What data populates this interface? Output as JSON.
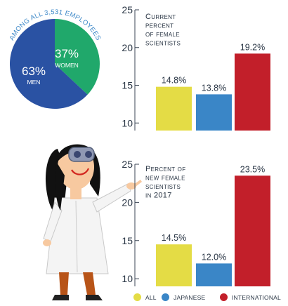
{
  "pie": {
    "caption": "Among all 3,531 employees",
    "slices": [
      {
        "label": "Women",
        "pct_text": "37%",
        "value": 37,
        "color": "#20a86b"
      },
      {
        "label": "Men",
        "pct_text": "63%",
        "value": 63,
        "color": "#2a52a3"
      }
    ]
  },
  "chart_data": [
    {
      "type": "bar",
      "title": "Current percent of female scientists",
      "title_lines": [
        "Current",
        "percent",
        "of female",
        "scientists"
      ],
      "categories": [
        "All",
        "Japanese",
        "International"
      ],
      "values": [
        14.8,
        13.8,
        19.2
      ],
      "value_labels": [
        "14.8%",
        "13.8%",
        "19.2%"
      ],
      "colors": [
        "#e4dc45",
        "#3a86c7",
        "#c21f2a"
      ],
      "ylim": [
        9,
        25
      ],
      "yticks": [
        10,
        15,
        20,
        25
      ],
      "ytick_labels": [
        "10",
        "15",
        "20",
        "25"
      ]
    },
    {
      "type": "bar",
      "title": "Percent of new female scientists in 2017",
      "title_lines": [
        "Percent of",
        "new female",
        "scientists",
        "in 2017"
      ],
      "categories": [
        "All",
        "Japanese",
        "International"
      ],
      "values": [
        14.5,
        12.0,
        23.5
      ],
      "value_labels": [
        "14.5%",
        "12.0%",
        "23.5%"
      ],
      "colors": [
        "#e4dc45",
        "#3a86c7",
        "#c21f2a"
      ],
      "ylim": [
        9,
        25
      ],
      "yticks": [
        10,
        15,
        20,
        25
      ],
      "ytick_labels": [
        "10",
        "15",
        "20",
        "25"
      ]
    }
  ],
  "legend": [
    {
      "label": "All",
      "color": "#e4dc45"
    },
    {
      "label": "Japanese",
      "color": "#3a86c7"
    },
    {
      "label": "International",
      "color": "#c21f2a"
    }
  ]
}
